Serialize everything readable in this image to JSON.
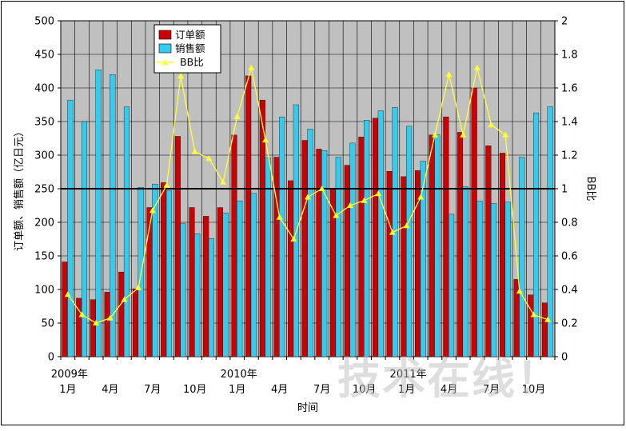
{
  "chart_data": {
    "type": "bar",
    "xlabel": "时间",
    "ylabel": "订单额、销售额（亿日元）",
    "y2label": "BB比",
    "ylim": [
      0,
      500
    ],
    "y2lim": [
      0,
      2
    ],
    "y_ticks": [
      0,
      50,
      100,
      150,
      200,
      250,
      300,
      350,
      400,
      450,
      500
    ],
    "y2_ticks": [
      "0",
      "0.2",
      "0.4",
      "0.6",
      "0.8",
      "1",
      "1.2",
      "1.4",
      "1.6",
      "1.8",
      "2"
    ],
    "grid": true,
    "legend_position": "top-left",
    "reference_line": {
      "axis": "y2",
      "value": 1
    },
    "x_tick_labels": [
      {
        "index": 0,
        "month": "1月",
        "year": "2009年"
      },
      {
        "index": 3,
        "month": "4月"
      },
      {
        "index": 6,
        "month": "7月"
      },
      {
        "index": 9,
        "month": "10月"
      },
      {
        "index": 12,
        "month": "1月",
        "year": "2010年"
      },
      {
        "index": 15,
        "month": "4月"
      },
      {
        "index": 18,
        "month": "7月"
      },
      {
        "index": 21,
        "month": "10月"
      },
      {
        "index": 24,
        "month": "1月",
        "year": "2011年"
      },
      {
        "index": 27,
        "month": "4月"
      },
      {
        "index": 30,
        "month": "7月"
      },
      {
        "index": 33,
        "month": "10月"
      }
    ],
    "series": [
      {
        "name": "订单额",
        "type": "bar",
        "axis": "left",
        "color": "#cc0000",
        "values": [
          141,
          87,
          85,
          96,
          126,
          101,
          222,
          259,
          328,
          222,
          209,
          222,
          330,
          418,
          382,
          297,
          262,
          322,
          309,
          249,
          285,
          327,
          355,
          276,
          268,
          277,
          330,
          357,
          334,
          400,
          314,
          303,
          115,
          92,
          80
        ]
      },
      {
        "name": "销售额",
        "type": "bar",
        "axis": "left",
        "color": "#33ccee",
        "values": [
          382,
          350,
          427,
          420,
          372,
          252,
          257,
          247,
          198,
          183,
          176,
          214,
          232,
          243,
          296,
          357,
          375,
          339,
          307,
          297,
          318,
          352,
          366,
          371,
          343,
          291,
          330,
          212,
          253,
          232,
          228,
          230,
          297,
          363,
          372
        ]
      },
      {
        "name": "BB比",
        "type": "line",
        "axis": "right",
        "color": "#ffff33",
        "values": [
          0.37,
          0.25,
          0.2,
          0.23,
          0.34,
          0.41,
          0.87,
          1.02,
          1.67,
          1.22,
          1.18,
          1.04,
          1.43,
          1.72,
          1.29,
          0.83,
          0.7,
          0.95,
          1.0,
          0.84,
          0.9,
          0.93,
          0.97,
          0.74,
          0.78,
          0.95,
          1.32,
          1.68,
          1.32,
          1.72,
          1.38,
          1.32,
          0.39,
          0.25,
          0.22
        ]
      }
    ]
  },
  "watermark": "技术在线！"
}
